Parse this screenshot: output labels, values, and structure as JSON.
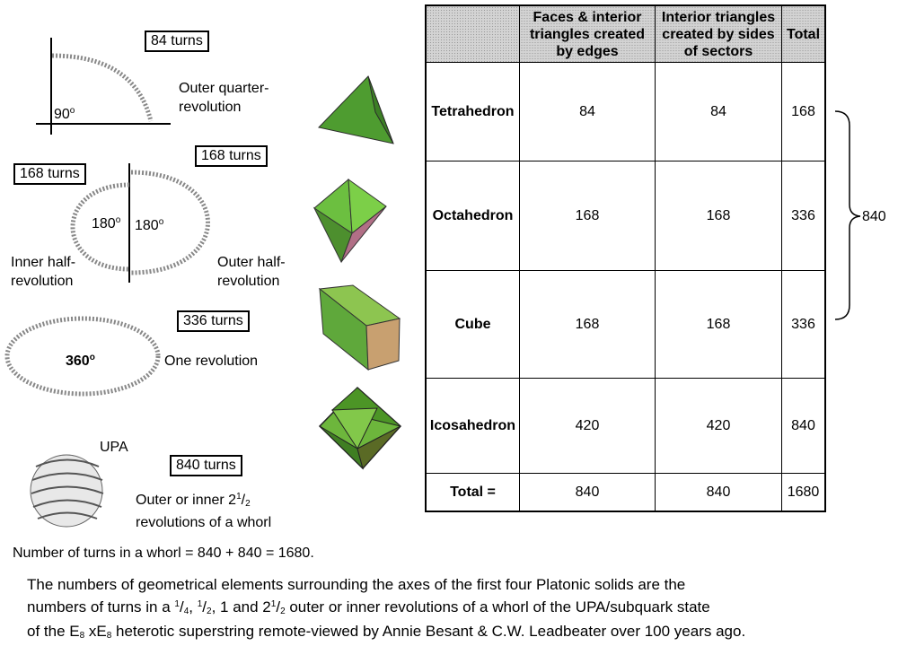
{
  "diagrams": {
    "quarter": {
      "turns": "84 turns",
      "angle": "90",
      "deg_mark": "o",
      "label": "Outer quarter-\nrevolution"
    },
    "half_outer": {
      "turns": "168 turns",
      "angle": "180",
      "deg_mark": "o",
      "label": "Outer half-\nrevolution"
    },
    "half_inner": {
      "turns": "168 turns",
      "angle": "180",
      "deg_mark": "o",
      "label": "Inner half-\nrevolution"
    },
    "full": {
      "turns": "336 turns",
      "angle": "360",
      "deg_mark": "o",
      "label": "One revolution"
    },
    "upa": {
      "title": "UPA",
      "turns": "840 turns",
      "label_prefix": "Outer or inner 2",
      "label_num": "1",
      "label_den": "2",
      "label_line2": "revolutions of a whorl"
    }
  },
  "whorl_sum": "Number of turns in a whorl = 840 + 840 = 1680.",
  "solids": [
    "tetrahedron-icon",
    "octahedron-icon",
    "cube-icon",
    "icosahedron-icon"
  ],
  "table": {
    "headers": [
      "",
      "Faces & interior triangles created by edges",
      "Interior triangles created by sides of sectors",
      "Total"
    ],
    "rows": [
      [
        "Tetrahedron",
        "84",
        "84",
        "168"
      ],
      [
        "Octahedron",
        "168",
        "168",
        "336"
      ],
      [
        "Cube",
        "168",
        "168",
        "336"
      ],
      [
        "Icosahedron",
        "420",
        "420",
        "840"
      ],
      [
        "Total =",
        "840",
        "840",
        "1680"
      ]
    ],
    "brace_total": "840"
  },
  "caption": {
    "line1": "The numbers of geometrical elements surrounding the axes of the first four Platonic solids are the",
    "line2_a": "numbers of turns in a ",
    "line2_q_num": "1",
    "line2_q_den": "4",
    "line2_sep1": ", ",
    "line2_h_num": "1",
    "line2_h_den": "2",
    "line2_b": ", 1 and 2",
    "line2_t_num": "1",
    "line2_t_den": "2",
    "line2_c": " outer or inner revolutions of a whorl of the UPA/subquark state",
    "line3_a": "of the E",
    "line3_sub1": "8",
    "line3_b": " xE",
    "line3_sub2": "8",
    "line3_c": " heterotic superstring remote-viewed by Annie Besant & C.W. Leadbeater over 100 years ago."
  },
  "colors": {
    "solid_green": "#5cae3a",
    "solid_dark": "#2f6b22",
    "solid_pink": "#c98a7a",
    "coil": "#666666",
    "header_bg": "#d3d3d3"
  }
}
